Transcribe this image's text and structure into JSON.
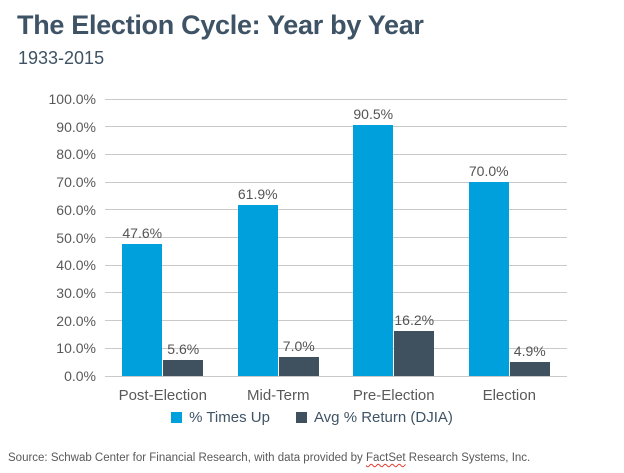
{
  "chart_data": {
    "type": "bar",
    "title": "The Election Cycle: Year by Year",
    "subtitle": "1933-2015",
    "categories": [
      "Post-Election",
      "Mid-Term",
      "Pre-Election",
      "Election"
    ],
    "series": [
      {
        "name": "% Times Up",
        "color": "#00a0dd",
        "values": [
          47.6,
          61.9,
          90.5,
          70.0
        ],
        "labels": [
          "47.6%",
          "61.9%",
          "90.5%",
          "70.0%"
        ]
      },
      {
        "name": "Avg % Return (DJIA)",
        "color": "#3f515e",
        "values": [
          5.6,
          7.0,
          16.2,
          4.9
        ],
        "labels": [
          "5.6%",
          "7.0%",
          "16.2%",
          "4.9%"
        ]
      }
    ],
    "ylim": [
      0,
      100
    ],
    "ytick_step": 10,
    "ytick_labels": [
      "0.0%",
      "10.0%",
      "20.0%",
      "30.0%",
      "40.0%",
      "50.0%",
      "60.0%",
      "70.0%",
      "80.0%",
      "90.0%",
      "100.0%"
    ],
    "grid": true,
    "legend_position": "bottom"
  },
  "source": {
    "prefix": "Source: Schwab Center for Financial Research, with data provided by ",
    "highlight": "FactSet",
    "suffix": " Research Systems, Inc."
  },
  "colors": {
    "title_text": "#3e5365",
    "axis_text": "#595959",
    "gridline": "#c9c9c9",
    "legend_text": "#3f5466",
    "spellcheck_underline": "#e03c31",
    "background": "#ffffff"
  }
}
